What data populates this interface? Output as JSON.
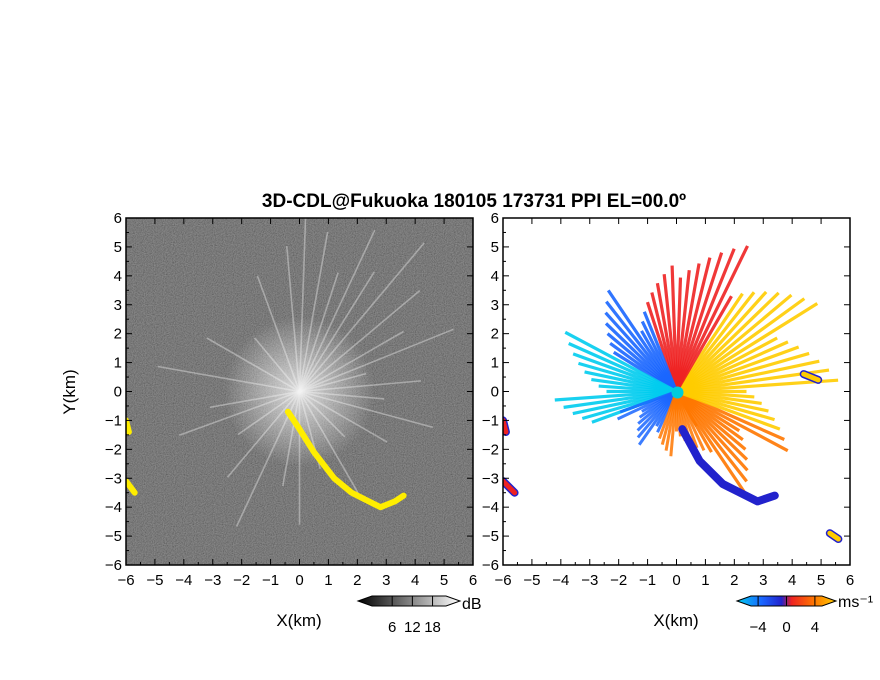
{
  "figure": {
    "title": "3D-CDL@Fukuoka 180105 173731 PPI EL=00.0º",
    "colors": {
      "background": "#ffffff",
      "reflectivity_bg": "#2a2a2a",
      "echo": "#ffee00"
    }
  },
  "chart_data": [
    {
      "type": "heatmap",
      "panel": "left",
      "xlabel": "X(km)",
      "ylabel": "Y(km)",
      "xlim": [
        -6,
        6
      ],
      "ylim": [
        -6,
        6
      ],
      "x_ticks": [
        -6,
        -5,
        -4,
        -3,
        -2,
        -1,
        0,
        1,
        2,
        3,
        4,
        5,
        6
      ],
      "y_ticks": [
        -6,
        -5,
        -4,
        -3,
        -2,
        -1,
        0,
        1,
        2,
        3,
        4,
        5,
        6
      ],
      "colorbar": {
        "unit": "dB",
        "ticks": [
          6,
          12,
          18
        ],
        "range": [
          0,
          22
        ],
        "colors": [
          "#000000",
          "#ffffff"
        ]
      },
      "echo_segments": [
        {
          "name": "southeast-band",
          "points": [
            [
              -0.4,
              -0.7
            ],
            [
              0,
              -1.3
            ],
            [
              0.5,
              -2.1
            ],
            [
              1.2,
              -3.0
            ],
            [
              1.8,
              -3.5
            ],
            [
              2.4,
              -3.8
            ],
            [
              2.8,
              -4.0
            ],
            [
              3.3,
              -3.8
            ],
            [
              3.6,
              -3.6
            ]
          ]
        },
        {
          "name": "west-edge-upper",
          "points": [
            [
              -6,
              -1.0
            ],
            [
              -5.9,
              -1.4
            ]
          ]
        },
        {
          "name": "west-edge-lower",
          "points": [
            [
              -6,
              -3.1
            ],
            [
              -5.7,
              -3.5
            ]
          ]
        }
      ]
    },
    {
      "type": "heatmap",
      "panel": "right",
      "xlabel": "X(km)",
      "ylabel": "",
      "xlim": [
        -6,
        6
      ],
      "ylim": [
        -6,
        6
      ],
      "x_ticks": [
        -6,
        -5,
        -4,
        -3,
        -2,
        -1,
        0,
        1,
        2,
        3,
        4,
        5,
        6
      ],
      "y_ticks": [
        -6,
        -5,
        -4,
        -3,
        -2,
        -1,
        0,
        1,
        2,
        3,
        4,
        5,
        6
      ],
      "colorbar": {
        "unit": "ms⁻¹",
        "ticks": [
          -4,
          0,
          4
        ],
        "range": [
          -5,
          5
        ],
        "colors": [
          "#00ccee",
          "#1a66ff",
          "#2222cc",
          "#ee2222",
          "#ff7700",
          "#ffcc00"
        ]
      },
      "velocity_segments": [
        {
          "name": "southeast-band",
          "points": [
            [
              0.2,
              -1.3
            ],
            [
              0.8,
              -2.4
            ],
            [
              1.6,
              -3.2
            ],
            [
              2.2,
              -3.5
            ],
            [
              2.8,
              -3.8
            ],
            [
              3.4,
              -3.6
            ]
          ],
          "velocity": -1
        },
        {
          "name": "west-edge",
          "points": [
            [
              -6,
              -1.0
            ],
            [
              -5.9,
              -1.4
            ]
          ],
          "velocity": 1
        },
        {
          "name": "southwest-edge",
          "points": [
            [
              -6,
              -3.1
            ],
            [
              -5.6,
              -3.5
            ]
          ],
          "velocity": 1
        },
        {
          "name": "southeast-corner",
          "points": [
            [
              5.3,
              -4.9
            ],
            [
              5.6,
              -5.1
            ]
          ],
          "velocity": 4
        },
        {
          "name": "east-patch",
          "points": [
            [
              4.4,
              0.6
            ],
            [
              4.9,
              0.4
            ]
          ],
          "velocity": 4
        }
      ]
    }
  ]
}
